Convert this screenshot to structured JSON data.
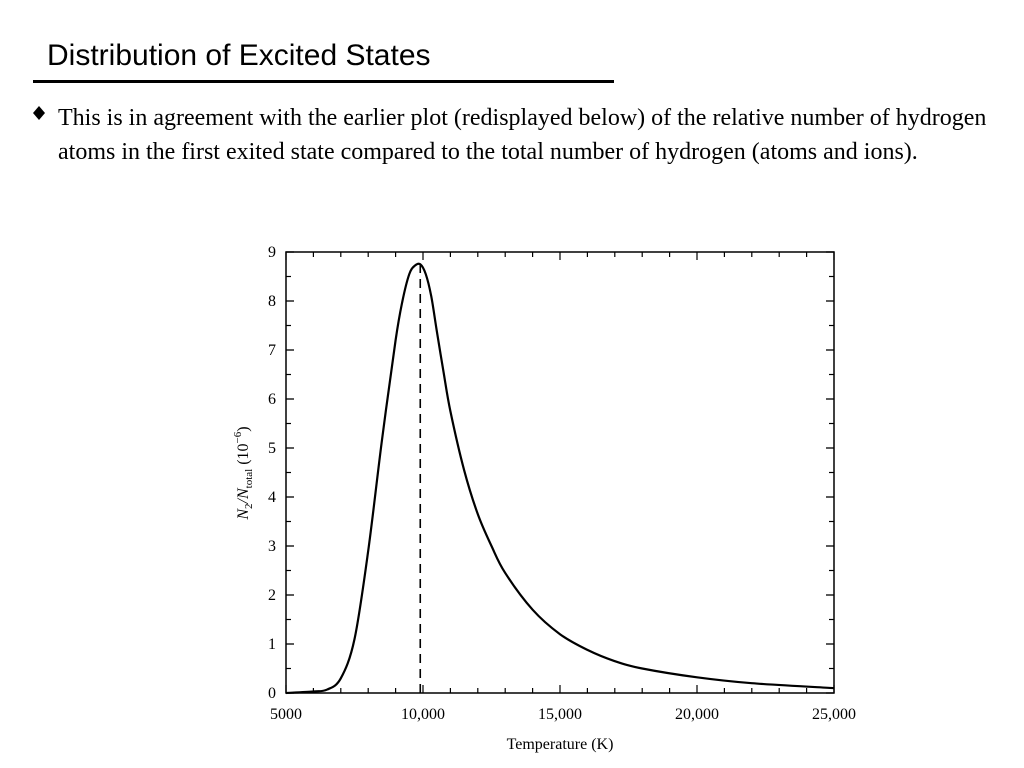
{
  "slide": {
    "title": "Distribution of Excited States",
    "bullet": "This is in agreement with the earlier plot (redisplayed below) of the relative number of hydrogen atoms in the first exited state compared to the total number of hydrogen (atoms and ions)."
  },
  "icons": {
    "bullet": "diamond-bullet-icon"
  },
  "chart_data": {
    "type": "line",
    "title": "",
    "xlabel": "Temperature (K)",
    "ylabel_main": "N",
    "ylabel_sub1": "2",
    "ylabel_slash": "/N",
    "ylabel_sub2": "total",
    "ylabel_unit": " (10",
    "ylabel_exp": "−6",
    "ylabel_close": ")",
    "xlim": [
      5000,
      25000
    ],
    "ylim": [
      0,
      9
    ],
    "x_ticks": [
      5000,
      10000,
      15000,
      20000,
      25000
    ],
    "x_tick_labels": [
      "5000",
      "10,000",
      "15,000",
      "20,000",
      "25,000"
    ],
    "y_ticks": [
      0,
      1,
      2,
      3,
      4,
      5,
      6,
      7,
      8,
      9
    ],
    "y_tick_labels": [
      "0",
      "1",
      "2",
      "3",
      "4",
      "5",
      "6",
      "7",
      "8",
      "9"
    ],
    "grid": false,
    "peak_marker_x": 9900,
    "series": [
      {
        "x": [
          5000,
          6000,
          6500,
          7000,
          7500,
          8000,
          8500,
          9000,
          9250,
          9500,
          9700,
          9900,
          10100,
          10300,
          10500,
          10750,
          11000,
          11500,
          12000,
          12500,
          13000,
          14000,
          15000,
          16000,
          17000,
          18000,
          20000,
          22000,
          25000
        ],
        "y": [
          0.0,
          0.03,
          0.07,
          0.3,
          1.1,
          2.9,
          5.15,
          7.2,
          8.0,
          8.55,
          8.72,
          8.75,
          8.55,
          8.1,
          7.4,
          6.55,
          5.75,
          4.55,
          3.65,
          3.0,
          2.45,
          1.7,
          1.2,
          0.88,
          0.65,
          0.5,
          0.32,
          0.2,
          0.1
        ]
      }
    ]
  }
}
